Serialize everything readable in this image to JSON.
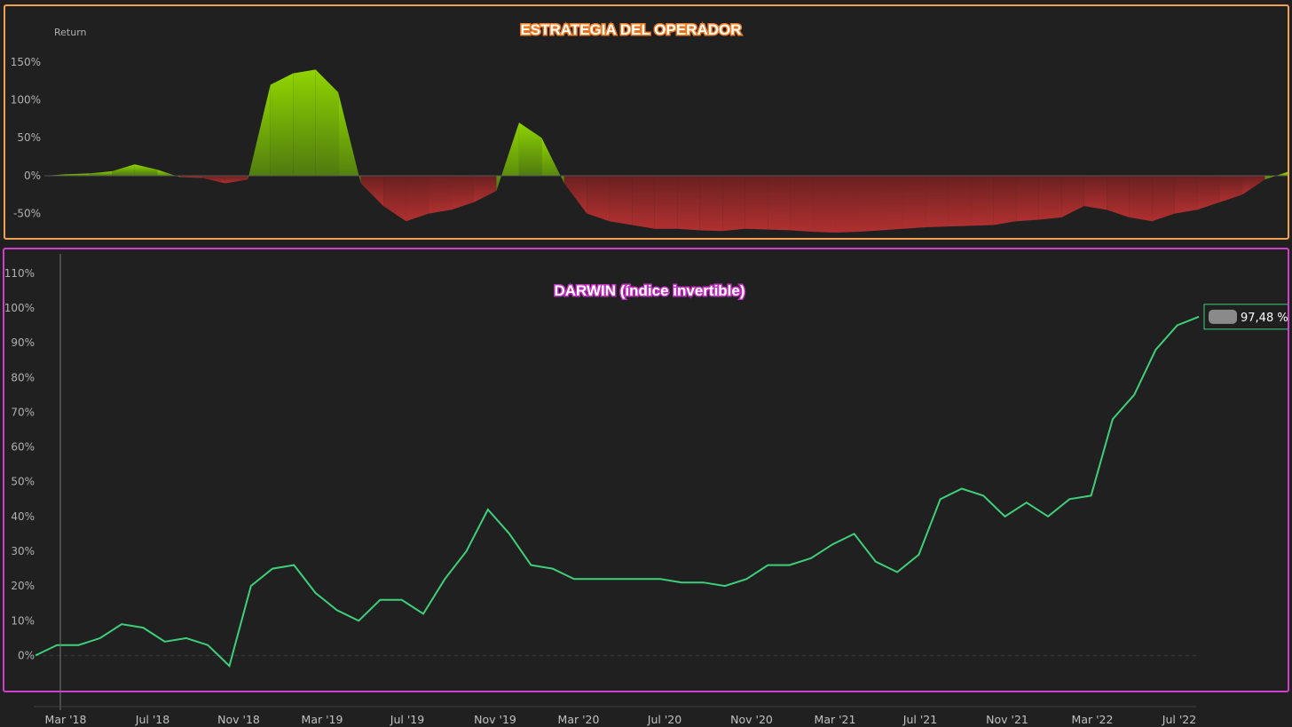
{
  "colors": {
    "background": "#202020",
    "top_border": "#f0a050",
    "bottom_border": "#d040d0",
    "positive_fill": "#8fd400",
    "negative_fill": "#9a2a2a",
    "line": "#3ecf7a"
  },
  "chart_data": [
    {
      "type": "area",
      "title": "ESTRATEGIA DEL OPERADOR",
      "ylabel": "Return",
      "ylim": [
        -75,
        165
      ],
      "y_ticks": [
        "150%",
        "100%",
        "50%",
        "0%",
        "-50%"
      ],
      "y_tick_values": [
        150,
        100,
        50,
        0,
        -50
      ],
      "x": [
        "Feb '18",
        "Mar '18",
        "Apr '18",
        "May '18",
        "Jun '18",
        "Jul '18",
        "Aug '18",
        "Sep '18",
        "Oct '18",
        "Nov '18",
        "Dec '18",
        "Jan '19",
        "Feb '19",
        "Mar '19",
        "Apr '19",
        "May '19",
        "Jun '19",
        "Jul '19",
        "Aug '19",
        "Sep '19",
        "Oct '19",
        "Nov '19",
        "Dec '19",
        "Jan '20",
        "Feb '20",
        "Mar '20",
        "Apr '20",
        "May '20",
        "Jun '20",
        "Jul '20",
        "Aug '20",
        "Sep '20",
        "Oct '20",
        "Nov '20",
        "Dec '20",
        "Jan '21",
        "Feb '21",
        "Mar '21",
        "Apr '21",
        "May '21",
        "Jun '21",
        "Jul '21",
        "Aug '21",
        "Sep '21",
        "Oct '21",
        "Nov '21",
        "Dec '21",
        "Jan '22",
        "Feb '22",
        "Mar '22",
        "Apr '22",
        "May '22",
        "Jun '22",
        "Jul '22",
        "Aug '22",
        "Sep '22"
      ],
      "values": [
        0,
        2,
        3,
        6,
        15,
        8,
        -2,
        -3,
        -10,
        -5,
        120,
        135,
        140,
        110,
        -10,
        -40,
        -60,
        -50,
        -45,
        -35,
        -20,
        70,
        50,
        -10,
        -50,
        -60,
        -65,
        -70,
        -70,
        -72,
        -73,
        -70,
        -71,
        -72,
        -74,
        -75,
        -74,
        -72,
        -70,
        -68,
        -67,
        -66,
        -65,
        -60,
        -58,
        -55,
        -40,
        -45,
        -55,
        -60,
        -50,
        -45,
        -35,
        -25,
        -5,
        5
      ]
    },
    {
      "type": "line",
      "title": "DARWIN (índice invertible)",
      "ylim": [
        -5,
        112
      ],
      "y_ticks": [
        "110%",
        "100%",
        "90%",
        "80%",
        "70%",
        "60%",
        "50%",
        "40%",
        "30%",
        "20%",
        "10%",
        "0%"
      ],
      "y_tick_values": [
        110,
        100,
        90,
        80,
        70,
        60,
        50,
        40,
        30,
        20,
        10,
        0
      ],
      "x_ticks": [
        "Mar '18",
        "Jul '18",
        "Nov '18",
        "Mar '19",
        "Jul '19",
        "Nov '19",
        "Mar '20",
        "Jul '20",
        "Nov '20",
        "Mar '21",
        "Jul '21",
        "Nov '21",
        "Mar '22",
        "Jul '22"
      ],
      "x": [
        "Feb '18",
        "Mar '18",
        "Apr '18",
        "May '18",
        "Jun '18",
        "Jul '18",
        "Aug '18",
        "Sep '18",
        "Oct '18",
        "Nov '18",
        "Dec '18",
        "Jan '19",
        "Feb '19",
        "Mar '19",
        "Apr '19",
        "May '19",
        "Jun '19",
        "Jul '19",
        "Aug '19",
        "Sep '19",
        "Oct '19",
        "Nov '19",
        "Dec '19",
        "Jan '20",
        "Feb '20",
        "Mar '20",
        "Apr '20",
        "May '20",
        "Jun '20",
        "Jul '20",
        "Aug '20",
        "Sep '20",
        "Oct '20",
        "Nov '20",
        "Dec '20",
        "Jan '21",
        "Feb '21",
        "Mar '21",
        "Apr '21",
        "May '21",
        "Jun '21",
        "Jul '21",
        "Aug '21",
        "Sep '21",
        "Oct '21",
        "Nov '21",
        "Dec '21",
        "Jan '22",
        "Feb '22",
        "Mar '22",
        "Apr '22",
        "May '22",
        "Jun '22",
        "Jul '22",
        "Aug '22"
      ],
      "values": [
        0,
        3,
        3,
        5,
        9,
        8,
        4,
        5,
        3,
        -3,
        20,
        25,
        26,
        18,
        13,
        10,
        16,
        16,
        12,
        22,
        30,
        42,
        35,
        26,
        25,
        22,
        22,
        22,
        22,
        22,
        21,
        21,
        20,
        22,
        26,
        26,
        28,
        32,
        35,
        27,
        24,
        29,
        45,
        48,
        46,
        40,
        44,
        40,
        45,
        46,
        68,
        75,
        88,
        95,
        97.48
      ],
      "end_label": "97,48 %"
    }
  ]
}
